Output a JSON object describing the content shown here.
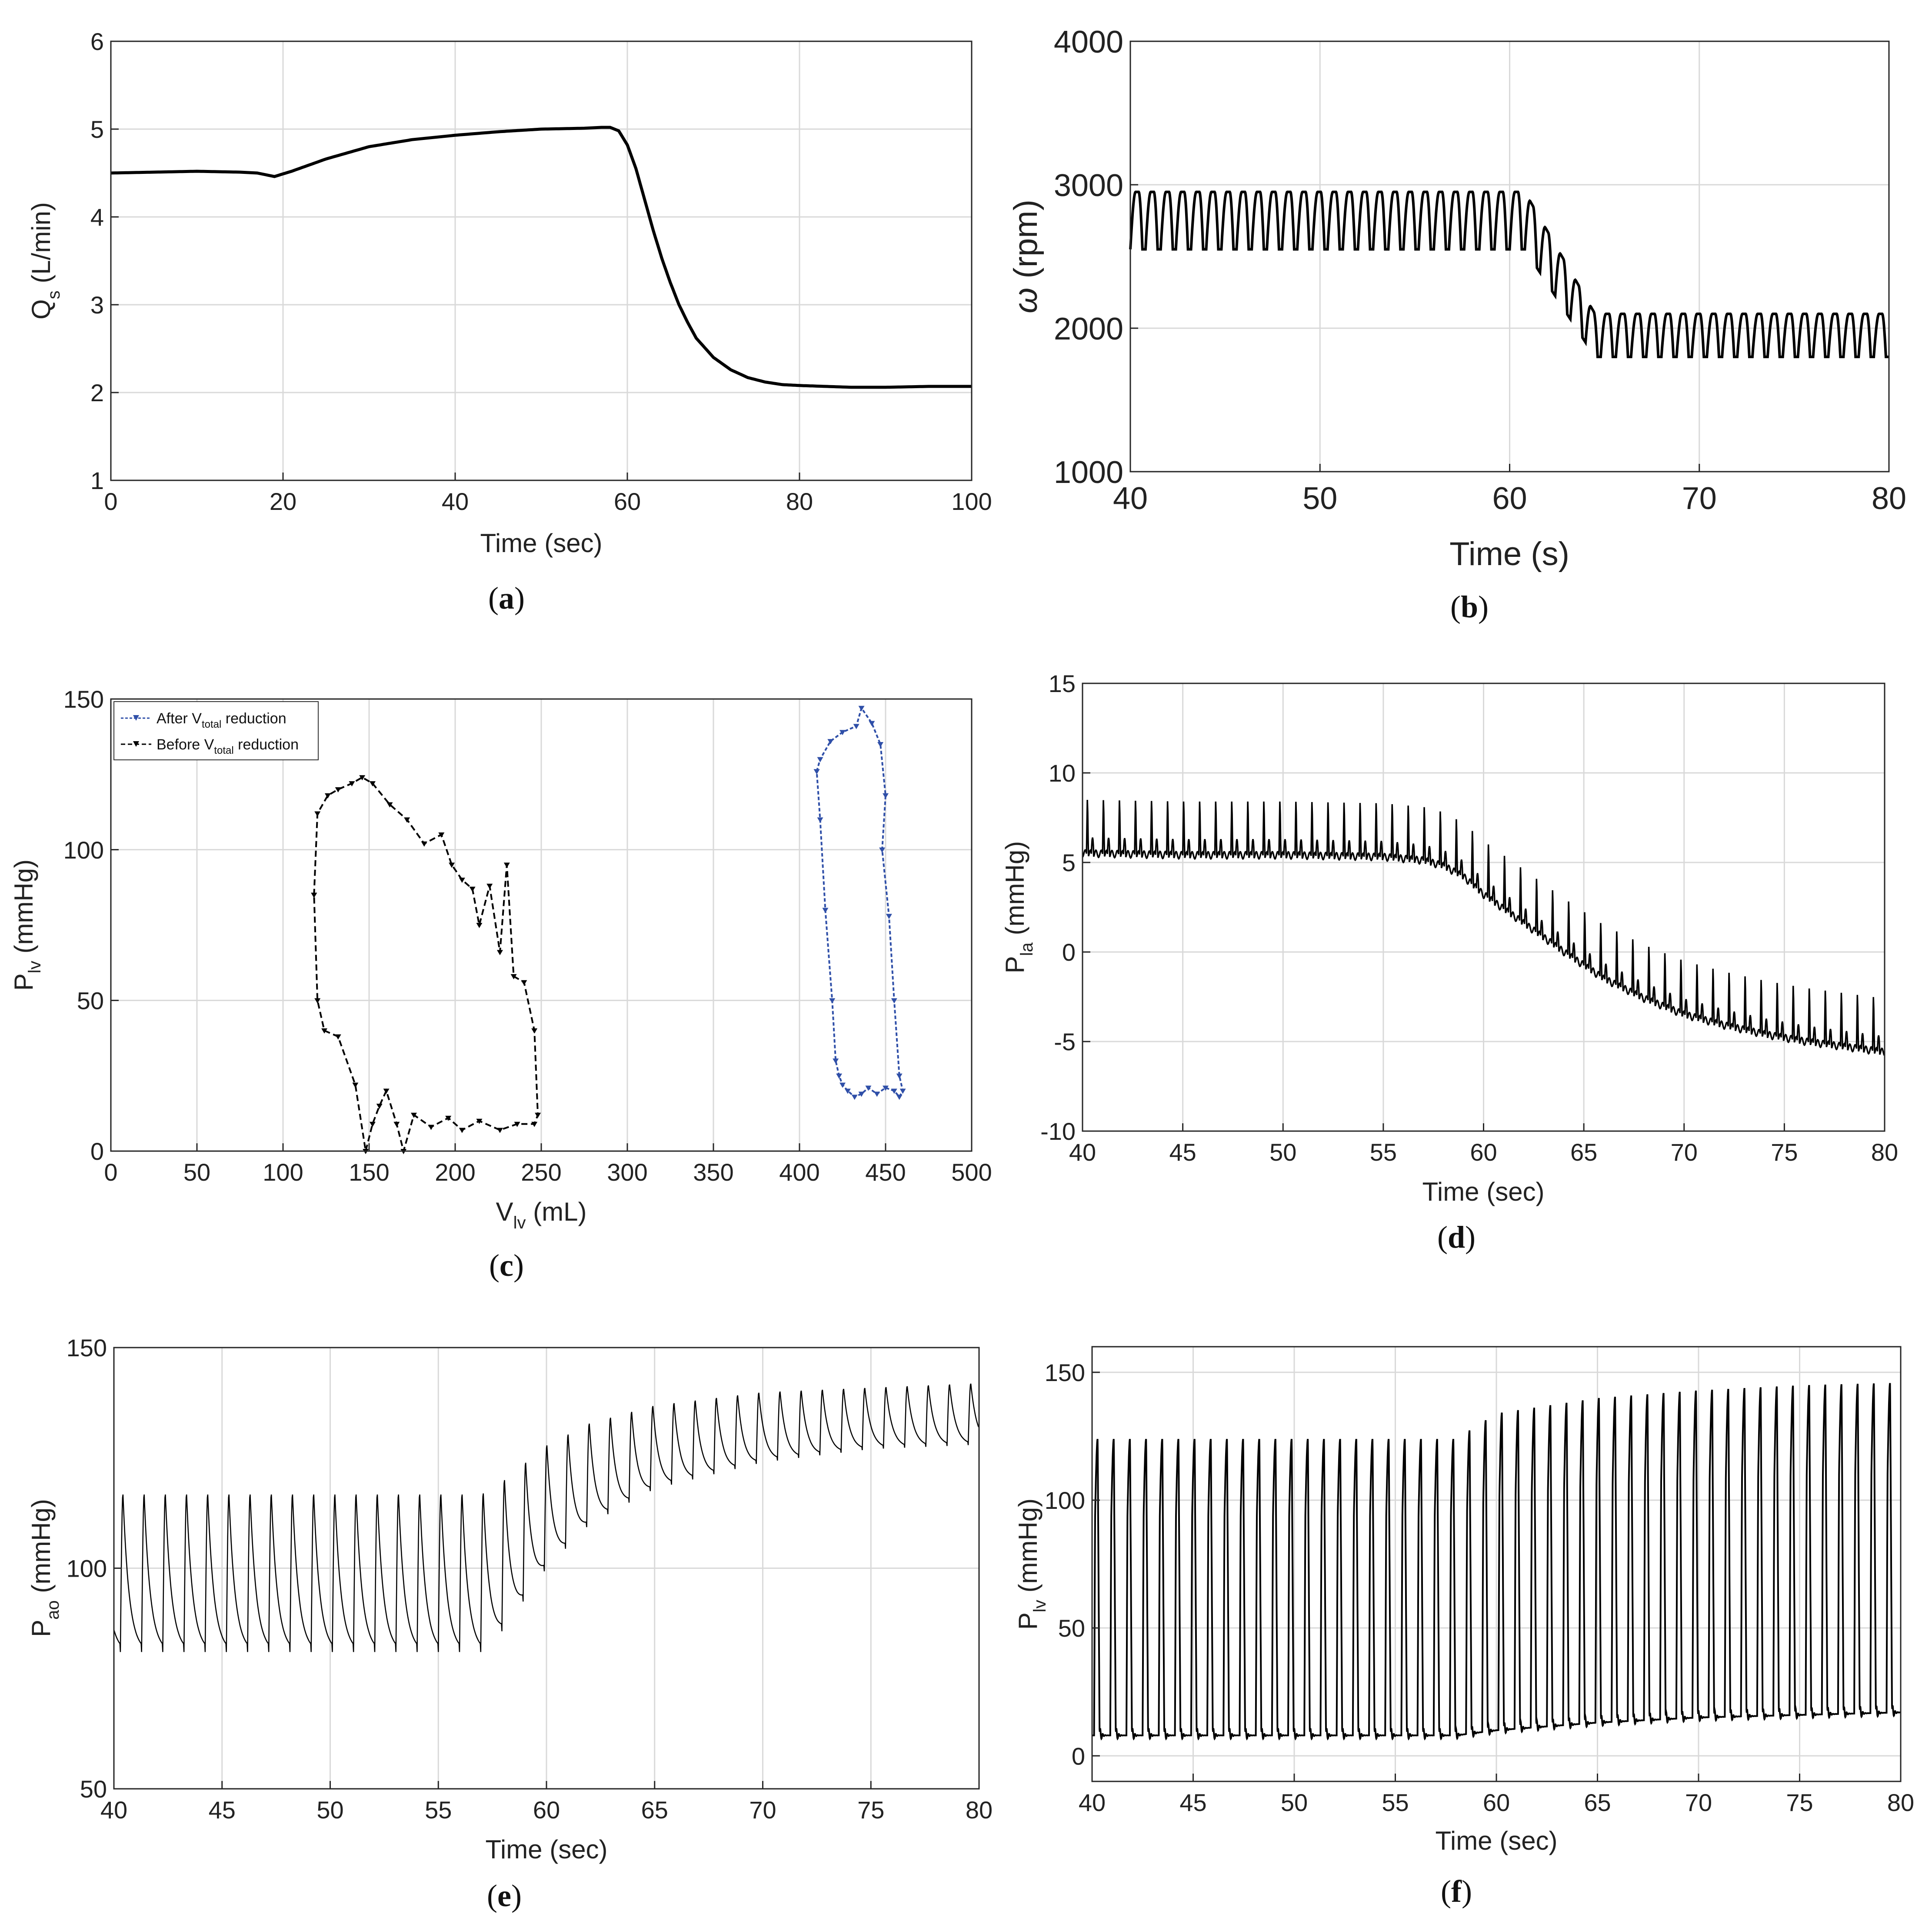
{
  "figure": {
    "captions": {
      "a": {
        "open": "(",
        "letter": "a",
        "close": ")"
      },
      "b": {
        "open": "(",
        "letter": "b",
        "close": ")"
      },
      "c": {
        "open": "(",
        "letter": "c",
        "close": ")"
      },
      "d": {
        "open": "(",
        "letter": "d",
        "close": ")"
      },
      "e": {
        "open": "(",
        "letter": "e",
        "close": ")"
      },
      "f": {
        "open": "(",
        "letter": "f",
        "close": ")"
      }
    }
  },
  "colors": {
    "trace": "#000000",
    "after_series": "#2f4fa8",
    "before_series": "#000000"
  },
  "chart_data": [
    {
      "panel": "a",
      "type": "line",
      "xlabel": "Time (sec)",
      "ylabel_main": "Q",
      "ylabel_sub": "s",
      "ylabel_unit": " (L/min)",
      "xlim": [
        0,
        100
      ],
      "ylim": [
        1,
        6
      ],
      "xticks": [
        0,
        20,
        40,
        60,
        80,
        100
      ],
      "yticks": [
        1,
        2,
        3,
        4,
        5,
        6
      ],
      "xtick_labels": [
        "0",
        "20",
        "40",
        "60",
        "80",
        "100"
      ],
      "ytick_labels": [
        "1",
        "2",
        "3",
        "4",
        "5",
        "6"
      ],
      "series": [
        {
          "name": "Qs",
          "x": [
            0,
            5,
            10,
            15,
            17,
            19,
            21,
            25,
            30,
            35,
            40,
            45,
            50,
            55,
            57,
            58,
            59,
            60,
            61,
            62,
            63,
            64,
            65,
            66,
            67,
            68,
            70,
            72,
            74,
            76,
            78,
            80,
            83,
            86,
            90,
            95,
            100
          ],
          "y": [
            4.5,
            4.51,
            4.52,
            4.51,
            4.5,
            4.46,
            4.52,
            4.66,
            4.8,
            4.88,
            4.93,
            4.97,
            5.0,
            5.01,
            5.02,
            5.02,
            4.98,
            4.82,
            4.55,
            4.2,
            3.85,
            3.53,
            3.25,
            3.0,
            2.8,
            2.62,
            2.4,
            2.26,
            2.17,
            2.12,
            2.09,
            2.08,
            2.07,
            2.06,
            2.06,
            2.07,
            2.07
          ]
        }
      ]
    },
    {
      "panel": "b",
      "type": "line",
      "xlabel": "Time (s)",
      "ylabel_main": "ω",
      "ylabel_unit": " (rpm)",
      "xlim": [
        40,
        80
      ],
      "ylim": [
        1000,
        4000
      ],
      "xticks": [
        40,
        50,
        60,
        70,
        80
      ],
      "yticks": [
        1000,
        2000,
        3000,
        4000
      ],
      "xtick_labels": [
        "40",
        "50",
        "60",
        "70",
        "80"
      ],
      "ytick_labels": [
        "1000",
        "2000",
        "3000",
        "4000"
      ],
      "description": "Pulsatile pump speed: ~2550-2950 rpm until t≈61 s, then drops to ~1800-2100 rpm",
      "series": [
        {
          "name": "omega",
          "segments": [
            {
              "t_start": 40,
              "t_end": 60.8,
              "low": 2550,
              "high": 2950
            },
            {
              "t_start": 60.8,
              "t_end": 64.5,
              "low_from": 2550,
              "low_to": 1800,
              "high_from": 2950,
              "high_to": 2100
            },
            {
              "t_start": 64.5,
              "t_end": 80,
              "low": 1800,
              "high": 2100
            }
          ],
          "period": 0.8
        }
      ]
    },
    {
      "panel": "c",
      "type": "line",
      "xlabel_main": "V",
      "xlabel_sub": "lv",
      "xlabel_unit": " (mL)",
      "ylabel_main": "P",
      "ylabel_sub": "lv",
      "ylabel_unit": " (mmHg)",
      "xlim": [
        0,
        500
      ],
      "ylim": [
        0,
        150
      ],
      "xticks": [
        0,
        50,
        100,
        150,
        200,
        250,
        300,
        350,
        400,
        450,
        500
      ],
      "yticks": [
        0,
        50,
        100,
        150
      ],
      "xtick_labels": [
        "0",
        "50",
        "100",
        "150",
        "200",
        "250",
        "300",
        "350",
        "400",
        "450",
        "500"
      ],
      "ytick_labels": [
        "0",
        "50",
        "100",
        "150"
      ],
      "legend": [
        {
          "label_pre": "After V",
          "label_sub": "total",
          "label_post": " reduction",
          "series": "after"
        },
        {
          "label_pre": "Before V",
          "label_sub": "total",
          "label_post": " reduction",
          "series": "before"
        }
      ],
      "series": [
        {
          "name": "After V_total reduction",
          "x": [
            410,
            412,
            418,
            425,
            433,
            436,
            442,
            447,
            450,
            448,
            452,
            455,
            458,
            460,
            458,
            455,
            450,
            445,
            440,
            436,
            432,
            428,
            425,
            423,
            421,
            419,
            415,
            412,
            410
          ],
          "y": [
            126,
            130,
            136,
            139,
            141,
            147,
            142,
            135,
            118,
            100,
            78,
            50,
            25,
            20,
            18,
            20,
            21,
            19,
            21,
            19,
            18,
            20,
            22,
            25,
            30,
            50,
            80,
            110,
            126
          ]
        },
        {
          "name": "Before V_total reduction",
          "x": [
            118,
            120,
            126,
            132,
            140,
            146,
            152,
            162,
            172,
            182,
            192,
            198,
            204,
            210,
            214,
            220,
            226,
            230,
            234,
            240,
            246,
            248,
            246,
            236,
            226,
            214,
            204,
            196,
            186,
            176,
            170,
            166,
            160,
            156,
            152,
            148,
            142,
            132,
            124,
            120,
            118
          ],
          "y": [
            85,
            112,
            118,
            120,
            122,
            124,
            122,
            115,
            110,
            102,
            105,
            95,
            90,
            87,
            75,
            88,
            66,
            95,
            58,
            56,
            40,
            12,
            9,
            9,
            7,
            10,
            7,
            11,
            8,
            12,
            0,
            9,
            20,
            15,
            9,
            0,
            22,
            38,
            40,
            50,
            85
          ]
        }
      ]
    },
    {
      "panel": "d",
      "type": "line",
      "xlabel": "Time (sec)",
      "ylabel_main": "P",
      "ylabel_sub": "la",
      "ylabel_unit": " (mmHg)",
      "xlim": [
        40,
        80
      ],
      "ylim": [
        -10,
        15
      ],
      "xticks": [
        40,
        45,
        50,
        55,
        60,
        65,
        70,
        75,
        80
      ],
      "yticks": [
        -10,
        -5,
        0,
        5,
        10,
        15
      ],
      "xtick_labels": [
        "40",
        "45",
        "50",
        "55",
        "60",
        "65",
        "70",
        "75",
        "80"
      ],
      "ytick_labels": [
        "-10",
        "-5",
        "0",
        "5",
        "10",
        "15"
      ],
      "description": "Left atrial pressure with spikes: baseline ~5.5 with spikes to ~9 until 58 s, then declining to ~-5.5 by 80 s",
      "series": [
        {
          "name": "Pla",
          "baseline_x": [
            40,
            45,
            50,
            55,
            57,
            58,
            59,
            60,
            62,
            64,
            66,
            68,
            70,
            72,
            74,
            76,
            78,
            80
          ],
          "baseline_y": [
            5.5,
            5.4,
            5.4,
            5.3,
            5.1,
            4.8,
            4.2,
            3.2,
            1.6,
            0.0,
            -1.5,
            -2.6,
            -3.5,
            -4.1,
            -4.6,
            -5.0,
            -5.3,
            -5.6
          ],
          "spike_height": 3.6,
          "period": 0.8
        }
      ]
    },
    {
      "panel": "e",
      "type": "line",
      "xlabel": "Time (sec)",
      "ylabel_main": "P",
      "ylabel_sub": "ao",
      "ylabel_unit": " (mmHg)",
      "xlim": [
        40,
        80
      ],
      "ylim": [
        50,
        150
      ],
      "xticks": [
        40,
        45,
        50,
        55,
        60,
        65,
        70,
        75,
        80
      ],
      "yticks": [
        50,
        100,
        150
      ],
      "xtick_labels": [
        "40",
        "45",
        "50",
        "55",
        "60",
        "65",
        "70",
        "75",
        "80"
      ],
      "ytick_labels": [
        "50",
        "100",
        "150"
      ],
      "description": "Aortic pressure oscillating ~81-117 mmHg until 57 s, rising to ~127-142 mmHg by 80 s",
      "series": [
        {
          "name": "Pao",
          "low_x": [
            40,
            57,
            58,
            59,
            60,
            62,
            65,
            70,
            75,
            80
          ],
          "low_y": [
            81,
            81,
            86,
            93,
            100,
            110,
            118,
            124,
            127,
            128
          ],
          "high_x": [
            40,
            57,
            58,
            59,
            60,
            62,
            65,
            70,
            75,
            80
          ],
          "high_y": [
            117,
            117,
            120,
            124,
            128,
            133,
            137,
            140,
            141,
            142
          ],
          "period": 0.98
        }
      ]
    },
    {
      "panel": "f",
      "type": "line",
      "xlabel": "Time (sec)",
      "ylabel_main": "P",
      "ylabel_sub": "lv",
      "ylabel_unit": " (mmHg)",
      "xlim": [
        40,
        80
      ],
      "ylim": [
        -10,
        160
      ],
      "xticks": [
        40,
        45,
        50,
        55,
        60,
        65,
        70,
        75,
        80
      ],
      "yticks": [
        0,
        50,
        100,
        150
      ],
      "xtick_labels": [
        "40",
        "45",
        "50",
        "55",
        "60",
        "65",
        "70",
        "75",
        "80"
      ],
      "ytick_labels": [
        "0",
        "50",
        "100",
        "150"
      ],
      "description": "Left ventricular pressure pulses: baseline ~8 with peaks ~124 until 58 s, rising to peaks ~146 by 80 s",
      "series": [
        {
          "name": "Plv",
          "peak_x": [
            40,
            58,
            60,
            65,
            70,
            75,
            80
          ],
          "peak_y": [
            124,
            124,
            134,
            140,
            143,
            145,
            146
          ],
          "base_x": [
            40,
            58,
            60,
            65,
            70,
            75,
            80
          ],
          "base_y": [
            8,
            8,
            10,
            13,
            15,
            16,
            17
          ],
          "period": 0.8
        }
      ]
    }
  ]
}
